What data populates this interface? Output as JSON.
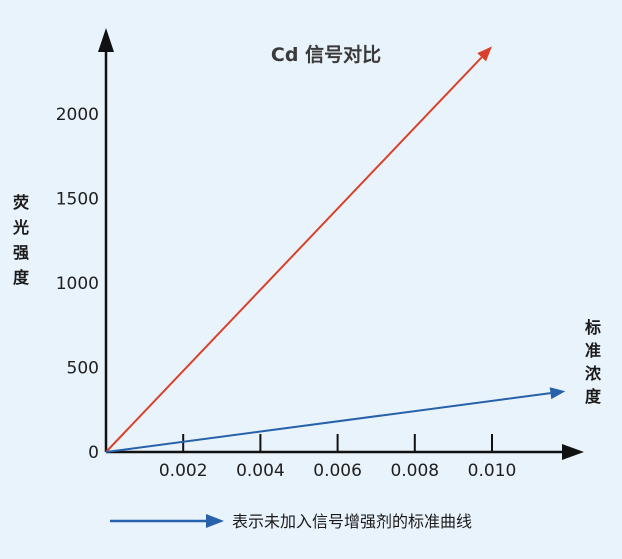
{
  "chart_data": {
    "type": "line",
    "title": "Cd 信号对比",
    "ylabel": "荧光强度",
    "xlabel": "标准浓度",
    "x_ticks": [
      "0.002",
      "0.004",
      "0.006",
      "0.008",
      "0.010"
    ],
    "y_ticks": [
      "0",
      "500",
      "1000",
      "1500",
      "2000"
    ],
    "xlim": [
      0,
      0.012
    ],
    "ylim": [
      0,
      2500
    ],
    "grid": false,
    "colors": {
      "axis": "#111111",
      "red_line": "#d9412b",
      "blue_line": "#2760ab",
      "legend_arrow": "#2760ab"
    },
    "series": [
      {
        "color": "#d9412b",
        "x": [
          0,
          0.01
        ],
        "y": [
          0,
          2400
        ]
      },
      {
        "color": "#2760ab",
        "x": [
          0,
          0.0119
        ],
        "y": [
          0,
          360
        ]
      }
    ],
    "legend": {
      "placement": "bottom",
      "text": "表示未加入信号增强剂的标准曲线",
      "color": "#2760ab"
    }
  }
}
